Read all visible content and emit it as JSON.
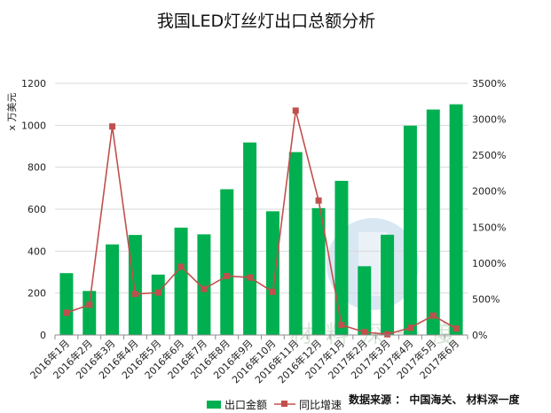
{
  "chart_data": {
    "type": "bar",
    "title": "我国LED灯丝灯出口总额分析",
    "ylabel": "x 万美元",
    "y2label": "",
    "categories": [
      "2016年1月",
      "2016年2月",
      "2016年3月",
      "2016年4月",
      "2016年5月",
      "2016年6月",
      "2016年7月",
      "2016年8月",
      "2016年9月",
      "2016年10月",
      "2016年11月",
      "2016年12月",
      "2017年1月",
      "2017年2月",
      "2017年3月",
      "2017年4月",
      "2017年5月",
      "2017年6月"
    ],
    "series": [
      {
        "name": "出口金额",
        "type": "bar",
        "axis": "left",
        "color": "#00b050",
        "values": [
          295,
          210,
          432,
          477,
          288,
          512,
          480,
          695,
          918,
          590,
          872,
          605,
          735,
          328,
          478,
          998,
          1075,
          1100
        ]
      },
      {
        "name": "同比增速",
        "type": "line",
        "axis": "right",
        "color": "#c0504d",
        "values": [
          310,
          420,
          2900,
          570,
          590,
          950,
          640,
          820,
          800,
          600,
          3120,
          1870,
          140,
          40,
          10,
          100,
          270,
          90
        ]
      }
    ],
    "ylim": [
      0,
      1200
    ],
    "yticks": [
      0,
      200,
      400,
      600,
      800,
      1000,
      1200
    ],
    "y2lim": [
      0,
      3500
    ],
    "y2ticks": [
      "0%",
      "500%",
      "1000%",
      "1500%",
      "2000%",
      "2500%",
      "3000%",
      "3500%"
    ],
    "grid": true,
    "legend_position": "bottom"
  },
  "source_text": "数据来源 ： 中国海关、 材料深一度",
  "watermark_text": "材料深一度"
}
